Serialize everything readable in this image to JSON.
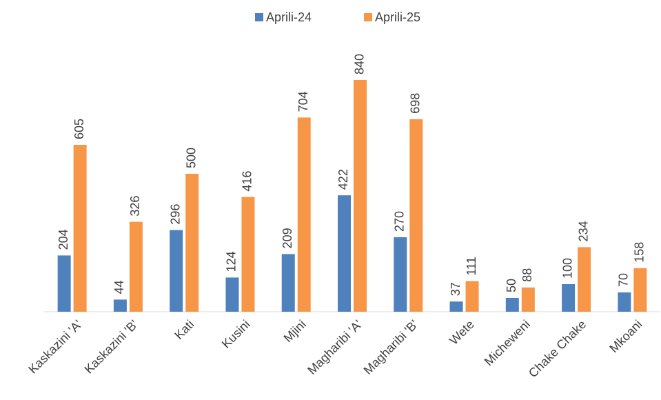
{
  "chart_data": {
    "type": "bar",
    "categories": [
      "Kaskazini 'A'",
      "Kaskazini 'B'",
      "Kati",
      "Kusini",
      "Mjini",
      "Magharibi 'A'",
      "Magharibi 'B'",
      "Wete",
      "Micheweni",
      "Chake Chake",
      "Mkoani"
    ],
    "series": [
      {
        "name": "Aprili-24",
        "color": "#4f81bd",
        "values": [
          204,
          44,
          296,
          124,
          209,
          422,
          270,
          37,
          50,
          100,
          70
        ]
      },
      {
        "name": "Aprili-25",
        "color": "#f79646",
        "values": [
          605,
          326,
          500,
          416,
          704,
          840,
          698,
          111,
          88,
          234,
          158
        ]
      }
    ],
    "legend": "top"
  }
}
